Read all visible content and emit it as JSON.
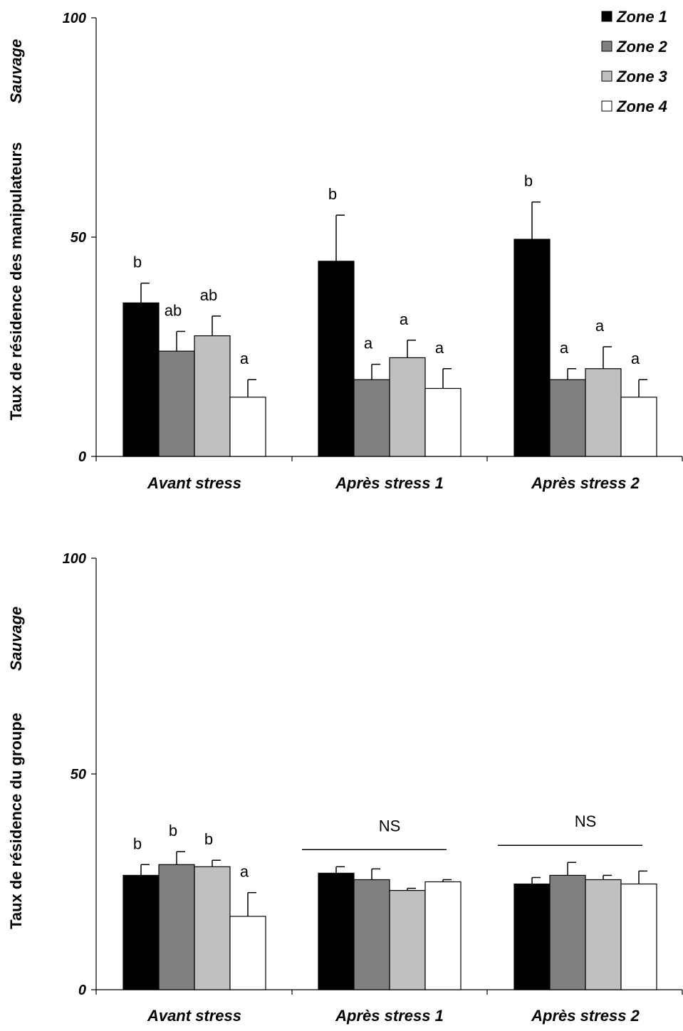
{
  "chart_data": [
    {
      "type": "bar",
      "ylabel_main": "Taux de résidence des manipulateurs",
      "ylabel_italic": "Sauvage",
      "ylim": [
        0,
        100
      ],
      "yticks": [
        "0",
        "50",
        "100"
      ],
      "categories": [
        "Avant stress",
        "Après stress 1",
        "Après stress 2"
      ],
      "series": [
        {
          "name": "Zone 1",
          "color": "#000000",
          "values": [
            35,
            44.5,
            49.5
          ],
          "errors": [
            4.5,
            10.5,
            8.5
          ]
        },
        {
          "name": "Zone 2",
          "color": "#808080",
          "values": [
            24,
            17.5,
            17.5
          ],
          "errors": [
            4.5,
            3.5,
            2.5
          ]
        },
        {
          "name": "Zone 3",
          "color": "#c0c0c0",
          "values": [
            27.5,
            22.5,
            20
          ],
          "errors": [
            4.5,
            4,
            5
          ]
        },
        {
          "name": "Zone 4",
          "color": "#ffffff",
          "values": [
            13.5,
            15.5,
            13.5
          ],
          "errors": [
            4,
            4.5,
            4
          ]
        }
      ],
      "annotations": [
        [
          "b",
          "ab",
          "ab",
          "a"
        ],
        [
          "b",
          "a",
          "a",
          "a"
        ],
        [
          "b",
          "a",
          "a",
          "a"
        ]
      ],
      "legend": {
        "position": "top-right",
        "entries": [
          "Zone 1",
          "Zone 2",
          "Zone 3",
          "Zone 4"
        ]
      }
    },
    {
      "type": "bar",
      "ylabel_main": "Taux de résidence du groupe",
      "ylabel_italic": "Sauvage",
      "ylim": [
        0,
        100
      ],
      "yticks": [
        "0",
        "50",
        "100"
      ],
      "categories": [
        "Avant stress",
        "Après stress 1",
        "Après stress 2"
      ],
      "series": [
        {
          "name": "Zone 1",
          "color": "#000000",
          "values": [
            26.5,
            27,
            24.5
          ],
          "errors": [
            2.5,
            1.5,
            1.5
          ]
        },
        {
          "name": "Zone 2",
          "color": "#808080",
          "values": [
            29,
            25.5,
            26.5
          ],
          "errors": [
            3,
            2.5,
            3
          ]
        },
        {
          "name": "Zone 3",
          "color": "#c0c0c0",
          "values": [
            28.5,
            23,
            25.5
          ],
          "errors": [
            1.5,
            0.5,
            1
          ]
        },
        {
          "name": "Zone 4",
          "color": "#ffffff",
          "values": [
            17,
            25,
            24.5
          ],
          "errors": [
            5.5,
            0.5,
            3
          ]
        }
      ],
      "annotations": [
        [
          "b",
          "b",
          "b",
          "a"
        ],
        [],
        []
      ],
      "group_annotations": [
        "",
        "NS",
        "NS"
      ]
    }
  ]
}
